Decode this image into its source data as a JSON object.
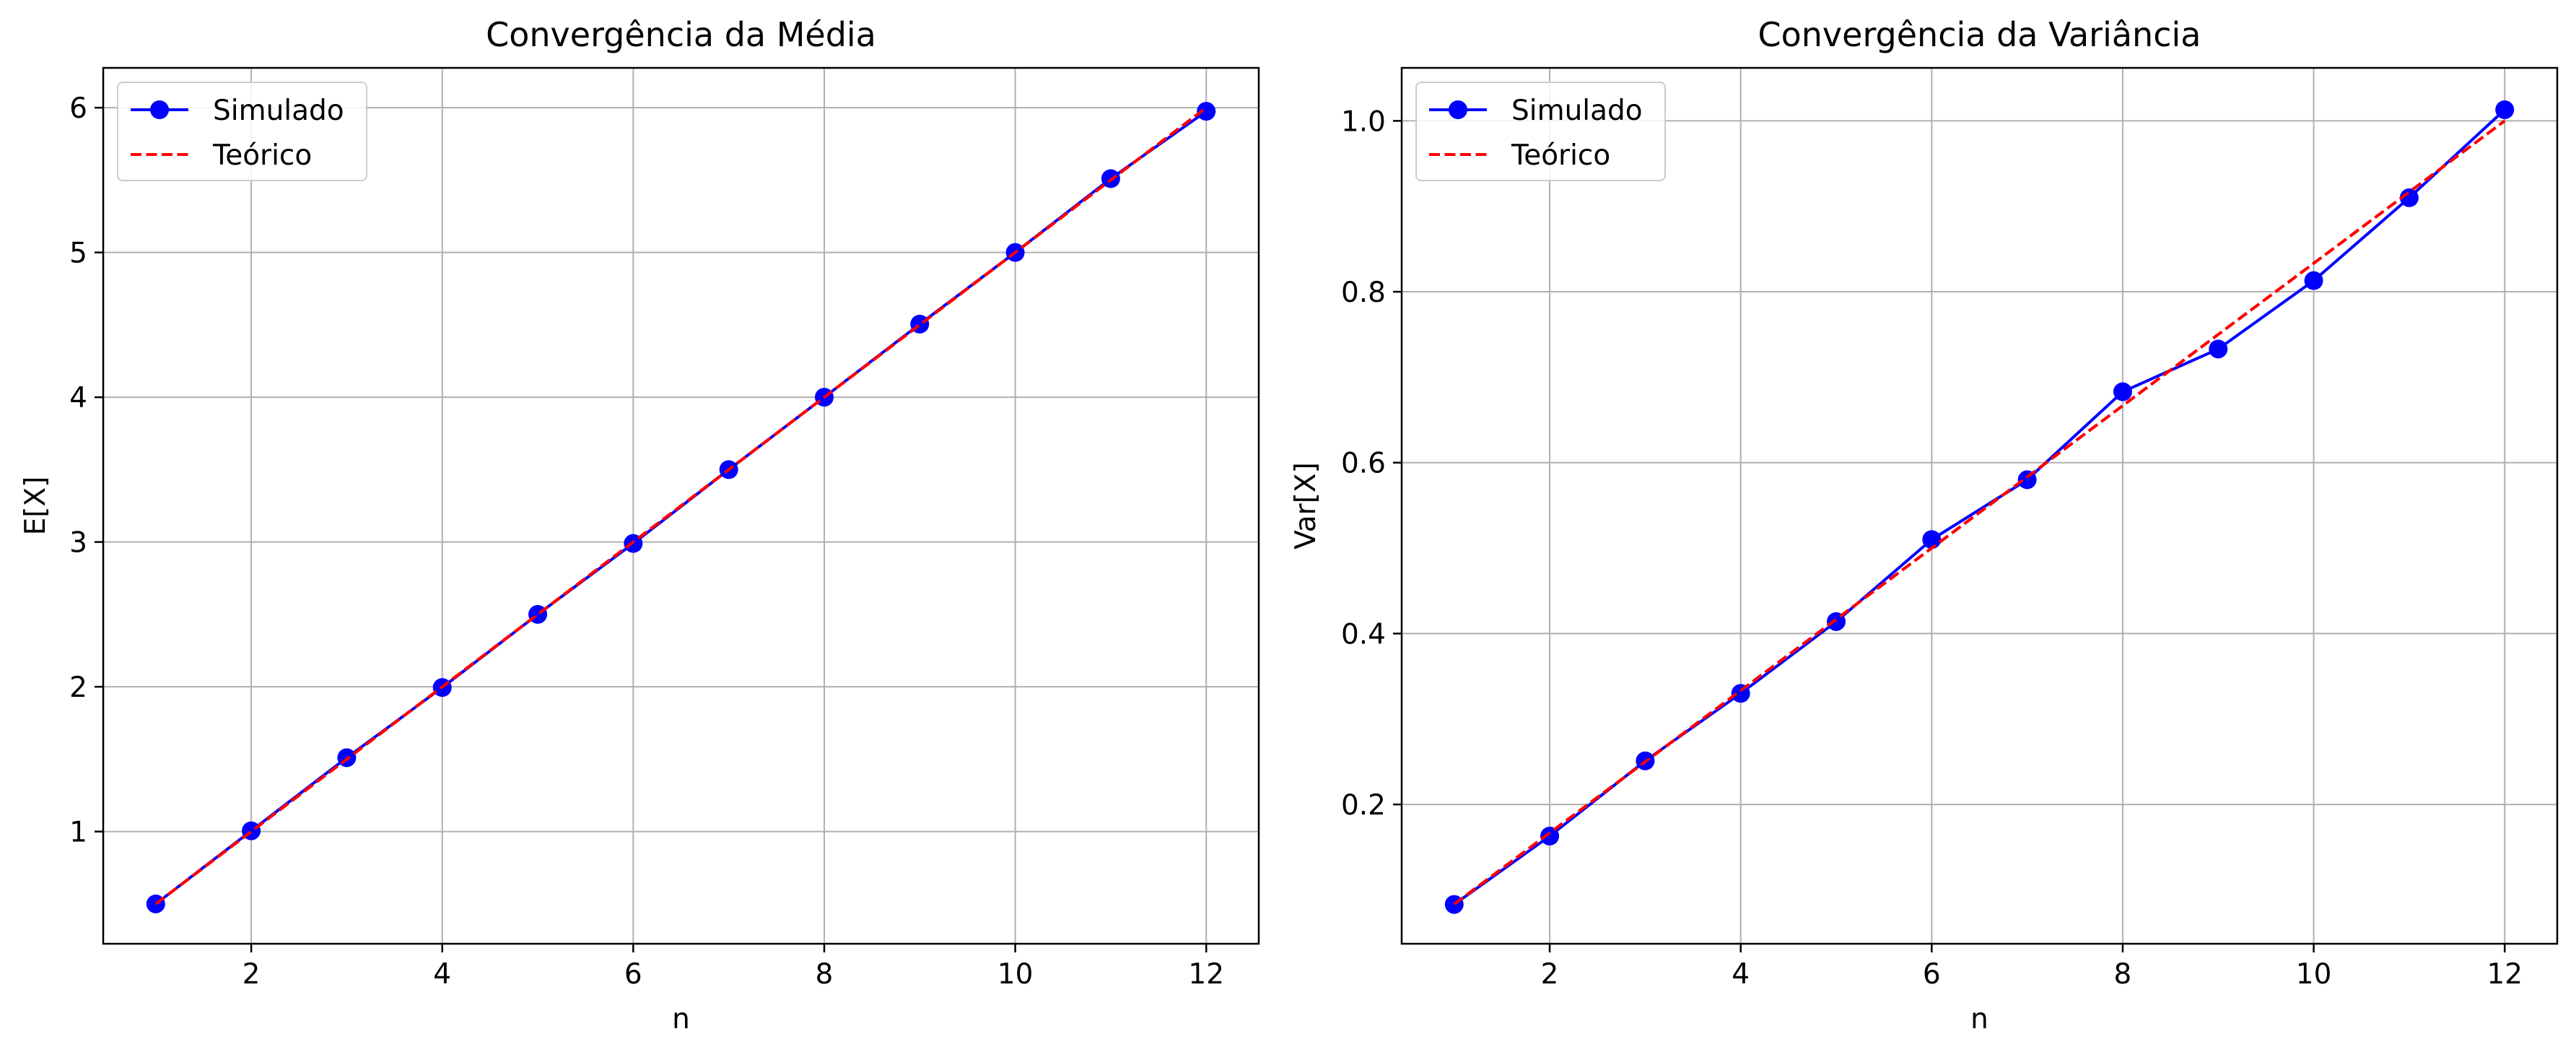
{
  "chart_data": [
    {
      "type": "line",
      "title": "Convergência da Média",
      "xlabel": "n",
      "ylabel": "E[X]",
      "xlim": [
        0.45,
        12.55
      ],
      "ylim": [
        0.225,
        6.275
      ],
      "xticks": [
        2,
        4,
        6,
        8,
        10,
        12
      ],
      "yticks": [
        1,
        2,
        3,
        4,
        5,
        6
      ],
      "grid": true,
      "legend_position": "upper-left",
      "series": [
        {
          "name": "Simulado",
          "style": "solid-marker",
          "color": "#0000ff",
          "x": [
            1,
            2,
            3,
            4,
            5,
            6,
            7,
            8,
            9,
            10,
            11,
            12
          ],
          "values": [
            0.5,
            1.005,
            1.51,
            1.995,
            2.5,
            2.99,
            3.5,
            4.0,
            4.505,
            5.0,
            5.51,
            5.975
          ]
        },
        {
          "name": "Teórico",
          "style": "dashed",
          "color": "#ff0000",
          "x": [
            1,
            2,
            3,
            4,
            5,
            6,
            7,
            8,
            9,
            10,
            11,
            12
          ],
          "values": [
            0.5,
            1.0,
            1.5,
            2.0,
            2.5,
            3.0,
            3.5,
            4.0,
            4.5,
            5.0,
            5.5,
            6.0
          ]
        }
      ]
    },
    {
      "type": "line",
      "title": "Convergência da Variância",
      "xlabel": "n",
      "ylabel": "Var[X]",
      "xlim": [
        0.45,
        12.55
      ],
      "ylim": [
        0.037,
        1.062
      ],
      "xticks": [
        2,
        4,
        6,
        8,
        10,
        12
      ],
      "yticks": [
        0.2,
        0.4,
        0.6,
        0.8,
        1.0
      ],
      "yticklabels": [
        "0.2",
        "0.4",
        "0.6",
        "0.8",
        "1.0"
      ],
      "grid": true,
      "legend_position": "upper-left",
      "series": [
        {
          "name": "Simulado",
          "style": "solid-marker",
          "color": "#0000ff",
          "x": [
            1,
            2,
            3,
            4,
            5,
            6,
            7,
            8,
            9,
            10,
            11,
            12
          ],
          "values": [
            0.083,
            0.163,
            0.251,
            0.33,
            0.414,
            0.51,
            0.58,
            0.683,
            0.733,
            0.813,
            0.91,
            1.013
          ]
        },
        {
          "name": "Teórico",
          "style": "dashed",
          "color": "#ff0000",
          "x": [
            1,
            2,
            3,
            4,
            5,
            6,
            7,
            8,
            9,
            10,
            11,
            12
          ],
          "values": [
            0.0833,
            0.1667,
            0.25,
            0.3333,
            0.4167,
            0.5,
            0.5833,
            0.6667,
            0.75,
            0.8333,
            0.9167,
            1.0
          ]
        }
      ]
    }
  ]
}
